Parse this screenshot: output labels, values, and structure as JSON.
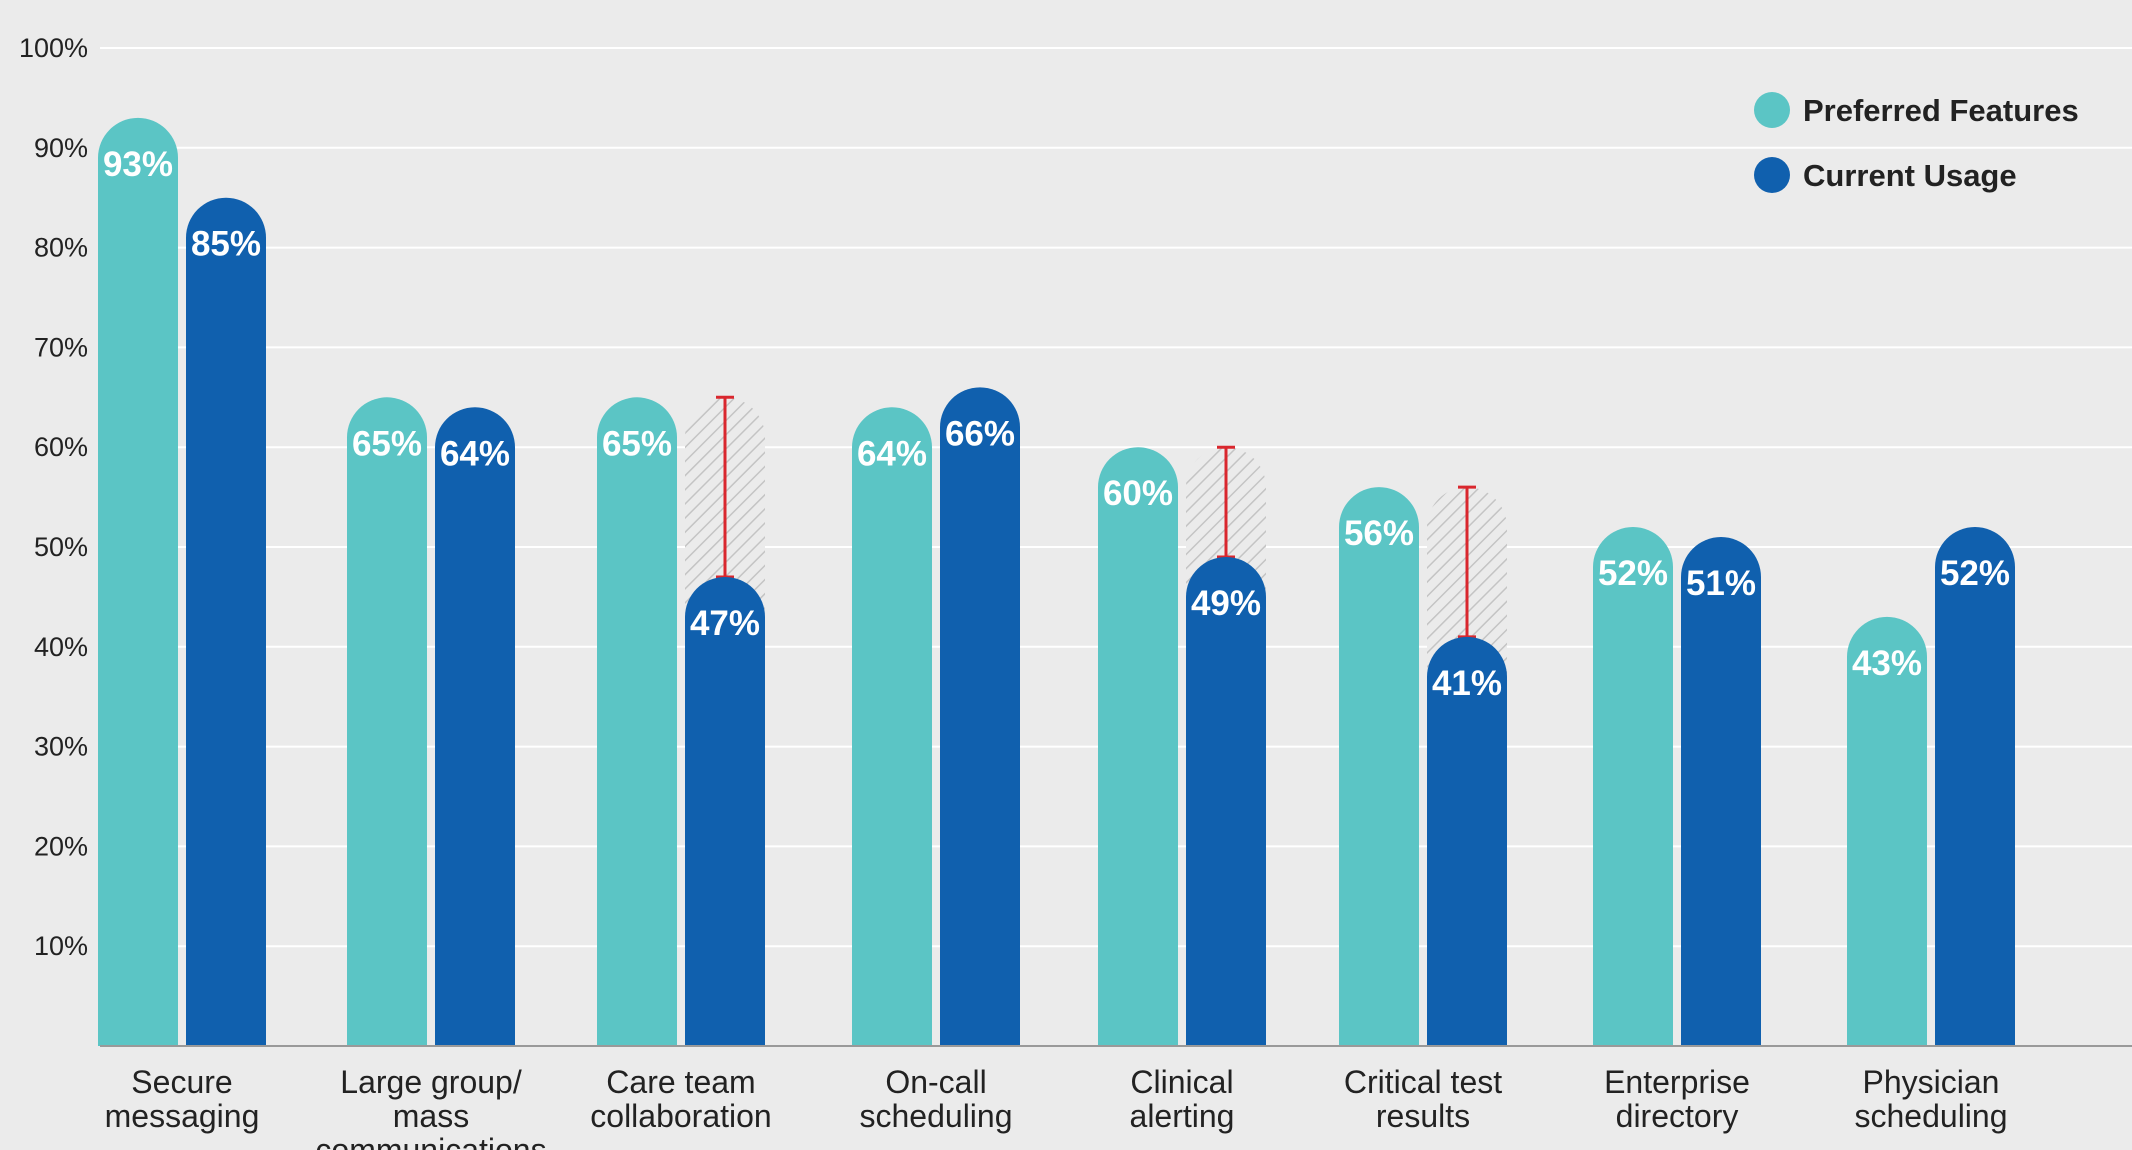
{
  "chart_data": {
    "type": "bar",
    "categories": [
      [
        "Secure",
        "messaging"
      ],
      [
        "Large group/",
        "mass",
        "communications"
      ],
      [
        "Care team",
        "collaboration"
      ],
      [
        "On-call",
        "scheduling"
      ],
      [
        "Clinical",
        "alerting"
      ],
      [
        "Critical test",
        "results"
      ],
      [
        "Enterprise",
        "directory"
      ],
      [
        "Physician",
        "scheduling"
      ]
    ],
    "series": [
      {
        "name": "Preferred Features",
        "color": "#5bc5c5",
        "values": [
          93,
          65,
          65,
          64,
          60,
          56,
          52,
          43
        ]
      },
      {
        "name": "Current Usage",
        "color": "#1060ae",
        "values": [
          85,
          64,
          47,
          66,
          49,
          41,
          51,
          52
        ]
      }
    ],
    "value_labels": [
      [
        "93%",
        "65%",
        "65%",
        "64%",
        "60%",
        "56%",
        "52%",
        "43%"
      ],
      [
        "85%",
        "64%",
        "47%",
        "66%",
        "49%",
        "41%",
        "51%",
        "52%"
      ]
    ],
    "gap_highlights": [
      2,
      4,
      5
    ],
    "gap_color": "#d9272e",
    "y_ticks": [
      10,
      20,
      30,
      40,
      50,
      60,
      70,
      80,
      90,
      100
    ],
    "y_tick_labels": [
      "10%",
      "20%",
      "30%",
      "40%",
      "50%",
      "60%",
      "70%",
      "80%",
      "90%",
      "100%"
    ],
    "ylim": [
      0,
      100
    ],
    "grid": true,
    "legend_position": "top-right",
    "background": "#ebebeb",
    "gridline_color": "#ffffff",
    "title": "",
    "xlabel": "",
    "ylabel": ""
  }
}
